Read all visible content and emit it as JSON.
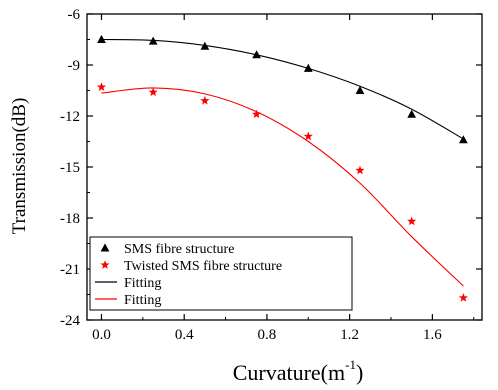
{
  "chart_data": {
    "type": "scatter",
    "xlabel": "Curvature(m",
    "xlabel_sup": "-1",
    "xlabel_close": ")",
    "ylabel": "Transmission(dB)",
    "xlim": [
      -0.07,
      1.84
    ],
    "ylim": [
      -24,
      -6
    ],
    "xticks": [
      0.0,
      0.4,
      0.8,
      1.2,
      1.6
    ],
    "xtick_labels": [
      "0.0",
      "0.4",
      "0.8",
      "1.2",
      "1.6"
    ],
    "yticks": [
      -6,
      -9,
      -12,
      -15,
      -18,
      -21,
      -24
    ],
    "ytick_labels": [
      "-6",
      "-9",
      "-12",
      "-15",
      "-18",
      "-21",
      "-24"
    ],
    "series": [
      {
        "name": "SMS fibre structure",
        "marker": "triangle",
        "color": "#000000",
        "x": [
          0,
          0.25,
          0.5,
          0.75,
          1.0,
          1.25,
          1.5,
          1.75
        ],
        "y": [
          -7.5,
          -7.6,
          -7.9,
          -8.4,
          -9.2,
          -10.5,
          -11.9,
          -13.4
        ]
      },
      {
        "name": "Twisted SMS fibre structure",
        "marker": "star",
        "color": "#ff0000",
        "x": [
          0,
          0.25,
          0.5,
          0.75,
          1.0,
          1.25,
          1.5,
          1.75
        ],
        "y": [
          -10.3,
          -10.6,
          -11.1,
          -11.9,
          -13.2,
          -15.2,
          -18.2,
          -22.7
        ]
      }
    ],
    "fits": [
      {
        "name": "Fitting",
        "color": "#000000",
        "x": [
          0,
          0.25,
          0.5,
          0.75,
          1.0,
          1.25,
          1.5,
          1.75
        ],
        "y": [
          -7.5,
          -7.55,
          -7.85,
          -8.4,
          -9.2,
          -10.25,
          -11.6,
          -13.35
        ]
      },
      {
        "name": "Fitting",
        "color": "#ff0000",
        "x": [
          0,
          0.25,
          0.5,
          0.75,
          1.0,
          1.25,
          1.5,
          1.75
        ],
        "y": [
          -10.65,
          -10.35,
          -10.7,
          -11.75,
          -13.5,
          -15.95,
          -19.1,
          -22.0
        ]
      }
    ],
    "legend_position": "bottom-left",
    "grid": false
  }
}
